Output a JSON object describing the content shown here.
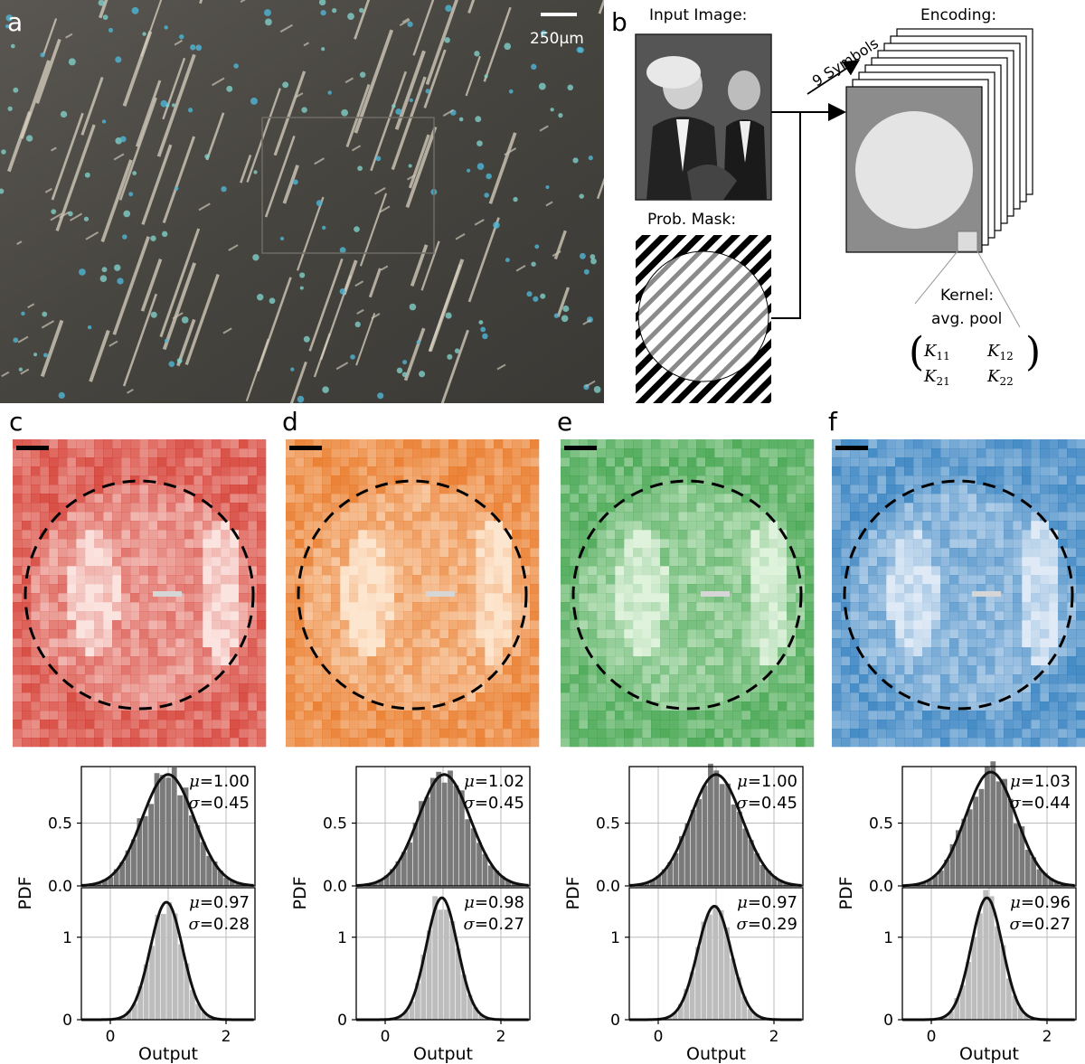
{
  "panels": {
    "a": {
      "letter": "a",
      "scale_bar_label": "250µm"
    },
    "b": {
      "letter": "b",
      "input_image_label": "Input Image:",
      "encoding_label": "Encoding:",
      "symbols_label": "9 Symbols",
      "prob_mask_label": "Prob. Mask:",
      "kernel_label": "Kernel:",
      "kernel_sub": "avg. pool",
      "kernel_matrix": [
        "K11",
        "K12",
        "K21",
        "K22"
      ]
    },
    "maps": [
      {
        "letter": "c",
        "color_dark": "#cf2a1f",
        "color_light": "#fbe3df"
      },
      {
        "letter": "d",
        "color_dark": "#e56a12",
        "color_light": "#fde6cf"
      },
      {
        "letter": "e",
        "color_dark": "#2e9a3c",
        "color_light": "#dff2dc"
      },
      {
        "letter": "f",
        "color_dark": "#1f73b8",
        "color_light": "#dfeaf6"
      }
    ]
  },
  "chart_data": [
    {
      "type": "histogram",
      "panel": "c",
      "subplot": "top",
      "mu": "1.00",
      "sigma": "0.45",
      "mean": 1.0,
      "std": 0.45,
      "ylabel": "PDF",
      "yticks": [
        "0.0",
        "0.5"
      ],
      "ylim": [
        0,
        0.95
      ],
      "xlim": [
        -0.5,
        2.5
      ],
      "xticks": [
        "0",
        "2"
      ]
    },
    {
      "type": "histogram",
      "panel": "c",
      "subplot": "bottom",
      "mu": "0.97",
      "sigma": "0.28",
      "mean": 0.97,
      "std": 0.28,
      "yticks": [
        "0",
        "1"
      ],
      "ylim": [
        0,
        1.6
      ],
      "xlabel": "Output",
      "xlim": [
        -0.5,
        2.5
      ],
      "xticks": [
        "0",
        "2"
      ]
    },
    {
      "type": "histogram",
      "panel": "d",
      "subplot": "top",
      "mu": "1.02",
      "sigma": "0.45",
      "mean": 1.02,
      "std": 0.45,
      "ylabel": "PDF",
      "yticks": [
        "0.0",
        "0.5"
      ],
      "ylim": [
        0,
        0.95
      ],
      "xlim": [
        -0.5,
        2.5
      ],
      "xticks": [
        "0",
        "2"
      ]
    },
    {
      "type": "histogram",
      "panel": "d",
      "subplot": "bottom",
      "mu": "0.98",
      "sigma": "0.27",
      "mean": 0.98,
      "std": 0.27,
      "yticks": [
        "0",
        "1"
      ],
      "ylim": [
        0,
        1.6
      ],
      "xlabel": "Output",
      "xlim": [
        -0.5,
        2.5
      ],
      "xticks": [
        "0",
        "2"
      ]
    },
    {
      "type": "histogram",
      "panel": "e",
      "subplot": "top",
      "mu": "1.00",
      "sigma": "0.45",
      "mean": 1.0,
      "std": 0.45,
      "ylabel": "PDF",
      "yticks": [
        "0.0",
        "0.5"
      ],
      "ylim": [
        0,
        0.95
      ],
      "xlim": [
        -0.5,
        2.5
      ],
      "xticks": [
        "0",
        "2"
      ]
    },
    {
      "type": "histogram",
      "panel": "e",
      "subplot": "bottom",
      "mu": "0.97",
      "sigma": "0.29",
      "mean": 0.97,
      "std": 0.29,
      "yticks": [
        "0",
        "1"
      ],
      "ylim": [
        0,
        1.6
      ],
      "xlabel": "Output",
      "xlim": [
        -0.5,
        2.5
      ],
      "xticks": [
        "0",
        "2"
      ]
    },
    {
      "type": "histogram",
      "panel": "f",
      "subplot": "top",
      "mu": "1.03",
      "sigma": "0.44",
      "mean": 1.03,
      "std": 0.44,
      "ylabel": "PDF",
      "yticks": [
        "0.0",
        "0.5"
      ],
      "ylim": [
        0,
        0.95
      ],
      "xlim": [
        -0.5,
        2.5
      ],
      "xticks": [
        "0",
        "2"
      ]
    },
    {
      "type": "histogram",
      "panel": "f",
      "subplot": "bottom",
      "mu": "0.96",
      "sigma": "0.27",
      "mean": 0.96,
      "std": 0.27,
      "yticks": [
        "0",
        "1"
      ],
      "ylim": [
        0,
        1.6
      ],
      "xlabel": "Output",
      "xlim": [
        -0.5,
        2.5
      ],
      "xticks": [
        "0",
        "2"
      ]
    }
  ],
  "colors": {
    "hist_top": "#7a7a7a",
    "hist_bottom": "#bdbdbd",
    "fit_curve": "#111111",
    "grid": "#bcbcbc"
  }
}
